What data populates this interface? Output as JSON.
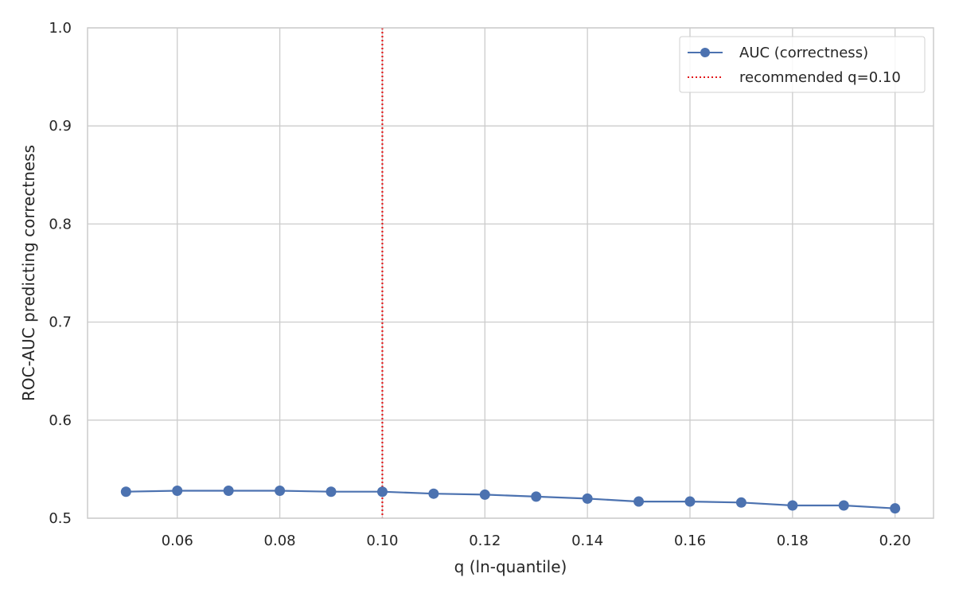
{
  "chart_data": {
    "type": "line",
    "xlabel": "q (ln-quantile)",
    "ylabel": "ROC-AUC predicting correctness",
    "xlim": [
      0.0425,
      0.2075
    ],
    "ylim": [
      0.5,
      1.0
    ],
    "xticks": [
      0.06,
      0.08,
      0.1,
      0.12,
      0.14,
      0.16,
      0.18,
      0.2
    ],
    "xtick_labels": [
      "0.06",
      "0.08",
      "0.10",
      "0.12",
      "0.14",
      "0.16",
      "0.18",
      "0.20"
    ],
    "yticks": [
      0.5,
      0.6,
      0.7,
      0.8,
      0.9,
      1.0
    ],
    "ytick_labels": [
      "0.5",
      "0.6",
      "0.7",
      "0.8",
      "0.9",
      "1.0"
    ],
    "grid": true,
    "legend_position": "top-right",
    "series": [
      {
        "name": "AUC (correctness)",
        "color": "#4c72b0",
        "marker": "circle",
        "x": [
          0.05,
          0.06,
          0.07,
          0.08,
          0.09,
          0.1,
          0.11,
          0.12,
          0.13,
          0.14,
          0.15,
          0.16,
          0.17,
          0.18,
          0.19,
          0.2
        ],
        "y": [
          0.527,
          0.528,
          0.528,
          0.528,
          0.527,
          0.527,
          0.525,
          0.524,
          0.522,
          0.52,
          0.517,
          0.517,
          0.516,
          0.513,
          0.513,
          0.51
        ]
      }
    ],
    "reference_lines": [
      {
        "name": "recommended q=0.10",
        "orientation": "vertical",
        "x": 0.1,
        "color": "#e31a1c",
        "style": "dotted"
      }
    ]
  }
}
